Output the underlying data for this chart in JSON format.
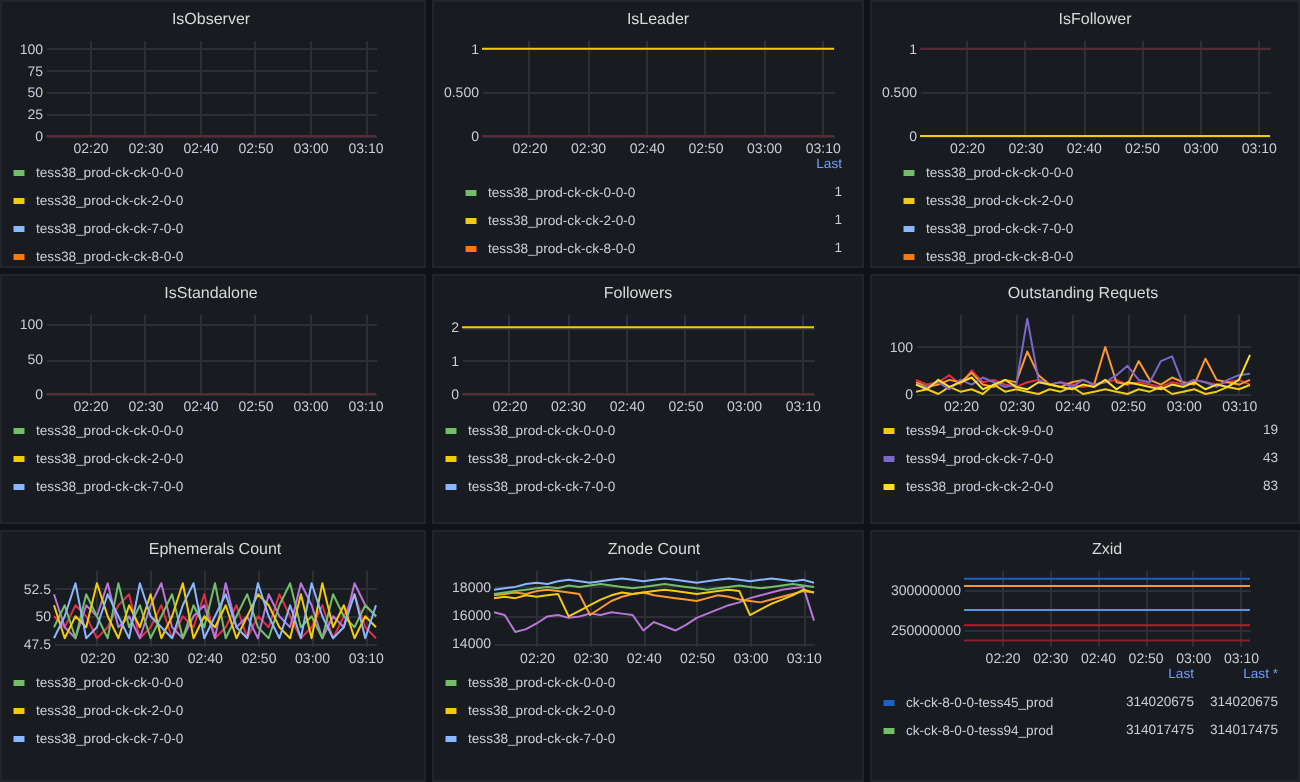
{
  "chart_data": [
    {
      "type": "line",
      "title": "IsObserver",
      "x": [
        2.2,
        3.2
      ],
      "xlim": [
        2.2,
        3.2
      ],
      "xticks": [
        {
          "value": 2.3333,
          "label": "02:20"
        },
        {
          "value": 2.5,
          "label": "02:30"
        },
        {
          "value": 2.6667,
          "label": "02:40"
        },
        {
          "value": 2.8333,
          "label": "02:50"
        },
        {
          "value": 3,
          "label": "03:00"
        },
        {
          "value": 3.1667,
          "label": "03:10"
        }
      ],
      "ylim": [
        0,
        110
      ],
      "yticks": [
        0,
        25,
        50,
        75,
        100
      ],
      "grid": true,
      "legend": "bottom",
      "series": [
        {
          "name": "tess38_prod-ck-ck-0-0-0",
          "color": "#73bf69",
          "values": [
            null,
            null
          ]
        },
        {
          "name": "tess38_prod-ck-ck-2-0-0",
          "color": "#f2cc0c",
          "values": [
            null,
            null
          ]
        },
        {
          "name": "tess38_prod-ck-ck-7-0-0",
          "color": "#8ab8ff",
          "values": [
            null,
            null
          ]
        },
        {
          "name": "tess38_prod-ck-ck-8-0-0",
          "color": "#ff780a",
          "values": [
            null,
            null
          ]
        },
        {
          "color": "#5c2a36",
          "values": [
            0,
            0
          ]
        }
      ]
    },
    {
      "type": "line",
      "title": "IsLeader",
      "x": [
        2.2,
        3.2
      ],
      "xlim": [
        2.2,
        3.2
      ],
      "xticks": [
        {
          "value": 2.3333,
          "label": "02:20"
        },
        {
          "value": 2.5,
          "label": "02:30"
        },
        {
          "value": 2.6667,
          "label": "02:40"
        },
        {
          "value": 2.8333,
          "label": "02:50"
        },
        {
          "value": 3,
          "label": "03:00"
        },
        {
          "value": 3.1667,
          "label": "03:10"
        }
      ],
      "ylim": [
        0,
        1.1
      ],
      "yticks": [
        0,
        {
          "value": 0.5,
          "label": "0.500"
        },
        1
      ],
      "grid": true,
      "legend": "bottom",
      "annotations": [
        "Last",
        "1",
        "1",
        "1"
      ],
      "series": [
        {
          "color": "#5c2a36",
          "values": [
            0,
            0
          ]
        },
        {
          "name": "tess38_prod-ck-ck-0-0-0",
          "color": "#73bf69",
          "values": [
            null,
            null
          ]
        },
        {
          "name": "tess38_prod-ck-ck-2-0-0",
          "color": "#f2cc0c",
          "values": [
            1,
            1
          ]
        },
        {
          "name": "tess38_prod-ck-ck-8-0-0",
          "color": "#ff780a",
          "values": [
            null,
            null
          ]
        }
      ]
    },
    {
      "type": "line",
      "title": "IsFollower",
      "x": [
        2.2,
        3.2
      ],
      "xlim": [
        2.2,
        3.2
      ],
      "xticks": [
        {
          "value": 2.3333,
          "label": "02:20"
        },
        {
          "value": 2.5,
          "label": "02:30"
        },
        {
          "value": 2.6667,
          "label": "02:40"
        },
        {
          "value": 2.8333,
          "label": "02:50"
        },
        {
          "value": 3,
          "label": "03:00"
        },
        {
          "value": 3.1667,
          "label": "03:10"
        }
      ],
      "ylim": [
        0,
        1.1
      ],
      "yticks": [
        0,
        {
          "value": 0.5,
          "label": "0.500"
        },
        1
      ],
      "grid": true,
      "legend": "bottom",
      "series": [
        {
          "color": "#5c2a36",
          "values": [
            1,
            1
          ]
        },
        {
          "name": "tess38_prod-ck-ck-0-0-0",
          "color": "#73bf69",
          "values": [
            null,
            null
          ]
        },
        {
          "name": "tess38_prod-ck-ck-2-0-0",
          "color": "#f2cc0c",
          "values": [
            0,
            0
          ]
        },
        {
          "name": "tess38_prod-ck-ck-7-0-0",
          "color": "#8ab8ff",
          "values": [
            null,
            null
          ]
        },
        {
          "name": "tess38_prod-ck-ck-8-0-0",
          "color": "#ff780a",
          "values": [
            null,
            null
          ]
        }
      ]
    },
    {
      "type": "line",
      "title": "IsStandalone",
      "x": [
        2.2,
        3.2
      ],
      "xlim": [
        2.2,
        3.2
      ],
      "xticks": [
        {
          "value": 2.3333,
          "label": "02:20"
        },
        {
          "value": 2.5,
          "label": "02:30"
        },
        {
          "value": 2.6667,
          "label": "02:40"
        },
        {
          "value": 2.8333,
          "label": "02:50"
        },
        {
          "value": 3,
          "label": "03:00"
        },
        {
          "value": 3.1667,
          "label": "03:10"
        }
      ],
      "ylim": [
        0,
        115
      ],
      "yticks": [
        0,
        50,
        100
      ],
      "grid": true,
      "legend": "bottom",
      "series": [
        {
          "name": "tess38_prod-ck-ck-0-0-0",
          "color": "#73bf69",
          "values": [
            null,
            null
          ]
        },
        {
          "name": "tess38_prod-ck-ck-2-0-0",
          "color": "#f2cc0c",
          "values": [
            null,
            null
          ]
        },
        {
          "name": "tess38_prod-ck-ck-7-0-0",
          "color": "#8ab8ff",
          "values": [
            null,
            null
          ]
        },
        {
          "color": "#5c2a36",
          "values": [
            0,
            0
          ]
        }
      ]
    },
    {
      "type": "line",
      "title": "Followers",
      "x": [
        2.2,
        3.2
      ],
      "xlim": [
        2.2,
        3.2
      ],
      "xticks": [
        {
          "value": 2.3333,
          "label": "02:20"
        },
        {
          "value": 2.5,
          "label": "02:30"
        },
        {
          "value": 2.6667,
          "label": "02:40"
        },
        {
          "value": 2.8333,
          "label": "02:50"
        },
        {
          "value": 3,
          "label": "03:00"
        },
        {
          "value": 3.1667,
          "label": "03:10"
        }
      ],
      "ylim": [
        0,
        2.4
      ],
      "yticks": [
        0,
        1,
        2
      ],
      "grid": true,
      "legend": "bottom",
      "series": [
        {
          "color": "#5c2a36",
          "values": [
            0,
            0
          ]
        },
        {
          "name": "tess38_prod-ck-ck-0-0-0",
          "color": "#73bf69",
          "values": [
            null,
            null
          ]
        },
        {
          "name": "tess38_prod-ck-ck-2-0-0",
          "color": "#f2cc0c",
          "values": [
            2,
            2
          ]
        },
        {
          "name": "tess38_prod-ck-ck-7-0-0",
          "color": "#8ab8ff",
          "values": [
            null,
            null
          ]
        }
      ]
    },
    {
      "type": "line",
      "title": "Outstanding Requets",
      "x": [
        2.2,
        2.2333,
        2.2667,
        2.3,
        2.3333,
        2.3667,
        2.4,
        2.4333,
        2.4667,
        2.5,
        2.5333,
        2.5667,
        2.6,
        2.6333,
        2.6667,
        2.7,
        2.7333,
        2.7667,
        2.8,
        2.8333,
        2.8667,
        2.9,
        2.9333,
        2.9667,
        3,
        3.0333,
        3.0667,
        3.1,
        3.1333,
        3.1667,
        3.2
      ],
      "xlim": [
        2.2,
        3.2
      ],
      "xticks": [
        {
          "value": 2.3333,
          "label": "02:20"
        },
        {
          "value": 2.5,
          "label": "02:30"
        },
        {
          "value": 2.6667,
          "label": "02:40"
        },
        {
          "value": 2.8333,
          "label": "02:50"
        },
        {
          "value": 3,
          "label": "03:00"
        },
        {
          "value": 3.1667,
          "label": "03:10"
        }
      ],
      "ylim": [
        0,
        170
      ],
      "yticks": [
        0,
        100
      ],
      "grid": true,
      "legend": "bottom",
      "annotations": [
        "19",
        "43",
        "83"
      ],
      "series": [
        {
          "color": "#e02f44",
          "values": [
            30,
            20,
            25,
            40,
            20,
            50,
            25,
            30,
            20,
            15,
            25,
            30,
            20,
            25,
            20,
            15,
            20,
            25,
            30,
            20,
            25,
            20,
            15,
            25,
            20,
            30,
            25,
            20,
            25,
            30,
            20
          ]
        },
        {
          "color": "#ff9830",
          "values": [
            25,
            15,
            20,
            30,
            25,
            45,
            20,
            15,
            30,
            25,
            90,
            40,
            20,
            15,
            25,
            30,
            20,
            100,
            25,
            20,
            70,
            30,
            20,
            35,
            25,
            20,
            75,
            30,
            25,
            20,
            30
          ]
        },
        {
          "name": "tess94_prod-ck-ck-9-0-0",
          "color": "#f2cc0c",
          "values": [
            5,
            10,
            0,
            15,
            5,
            10,
            0,
            20,
            5,
            10,
            5,
            0,
            10,
            5,
            15,
            0,
            5,
            10,
            5,
            0,
            10,
            5,
            15,
            0,
            5,
            10,
            0,
            5,
            15,
            10,
            19
          ]
        },
        {
          "name": "tess94_prod-ck-ck-7-0-0",
          "color": "#7b68c8",
          "values": [
            20,
            15,
            25,
            10,
            30,
            20,
            35,
            25,
            15,
            20,
            160,
            30,
            20,
            25,
            15,
            30,
            20,
            25,
            40,
            60,
            30,
            25,
            70,
            80,
            20,
            30,
            25,
            15,
            30,
            40,
            43
          ]
        },
        {
          "name": "tess38_prod-ck-ck-2-0-0",
          "color": "#fade2a",
          "values": [
            20,
            10,
            30,
            15,
            25,
            35,
            10,
            20,
            30,
            15,
            10,
            25,
            20,
            15,
            10,
            20,
            15,
            30,
            10,
            25,
            20,
            15,
            10,
            20,
            15,
            25,
            10,
            20,
            15,
            30,
            83
          ]
        }
      ]
    },
    {
      "type": "line",
      "title": "Ephemerals Count",
      "x": [
        2.2,
        2.2333,
        2.2667,
        2.3,
        2.3333,
        2.3667,
        2.4,
        2.4333,
        2.4667,
        2.5,
        2.5333,
        2.5667,
        2.6,
        2.6333,
        2.6667,
        2.7,
        2.7333,
        2.7667,
        2.8,
        2.8333,
        2.8667,
        2.9,
        2.9333,
        2.9667,
        3,
        3.0333,
        3.0667,
        3.1,
        3.1333,
        3.1667,
        3.2
      ],
      "xlim": [
        2.2,
        3.2
      ],
      "xticks": [
        {
          "value": 2.3333,
          "label": "02:20"
        },
        {
          "value": 2.5,
          "label": "02:30"
        },
        {
          "value": 2.6667,
          "label": "02:40"
        },
        {
          "value": 2.8333,
          "label": "02:50"
        },
        {
          "value": 3,
          "label": "03:00"
        },
        {
          "value": 3.1667,
          "label": "03:10"
        }
      ],
      "ylim": [
        47.3,
        54.2
      ],
      "yticks": [
        47.5,
        50,
        52.5
      ],
      "grid": true,
      "legend": "bottom",
      "series": [
        {
          "color": "#e02f44",
          "values": [
            50,
            49,
            51,
            50,
            48,
            49,
            51,
            52,
            48,
            49,
            51,
            48,
            50,
            49,
            52,
            48,
            49,
            51,
            48,
            50,
            49,
            52,
            50,
            48,
            49,
            51,
            48,
            50,
            52,
            49,
            48
          ]
        },
        {
          "color": "#b877d9",
          "values": [
            52,
            49,
            48,
            51,
            50,
            53,
            49,
            50,
            48,
            51,
            53,
            49,
            48,
            50,
            51,
            48,
            53,
            49,
            50,
            48,
            52,
            50,
            49,
            53,
            51,
            48,
            50,
            49,
            53,
            51,
            50
          ]
        },
        {
          "name": "tess38_prod-ck-ck-0-0-0",
          "color": "#73bf69",
          "values": [
            49,
            51,
            48,
            52,
            50,
            48,
            53,
            49,
            51,
            48,
            50,
            52,
            48,
            51,
            49,
            53,
            48,
            50,
            52,
            49,
            48,
            51,
            53,
            49,
            50,
            48,
            52,
            50,
            49,
            51,
            50
          ]
        },
        {
          "name": "tess38_prod-ck-ck-2-0-0",
          "color": "#f2cc0c",
          "values": [
            51,
            48,
            50,
            49,
            53,
            50,
            48,
            51,
            49,
            52,
            48,
            50,
            53,
            48,
            50,
            49,
            51,
            48,
            50,
            52,
            51,
            49,
            48,
            52,
            48,
            53,
            49,
            51,
            48,
            50,
            49
          ]
        },
        {
          "name": "tess38_prod-ck-ck-7-0-0",
          "color": "#8ab8ff",
          "values": [
            48,
            50,
            53,
            48,
            49,
            52,
            50,
            48,
            53,
            50,
            49,
            48,
            51,
            53,
            48,
            50,
            52,
            49,
            48,
            53,
            50,
            48,
            51,
            48,
            53,
            50,
            48,
            49,
            52,
            48,
            51
          ]
        }
      ]
    },
    {
      "type": "line",
      "title": "Znode Count",
      "x": [
        2.2,
        2.2333,
        2.2667,
        2.3,
        2.3333,
        2.3667,
        2.4,
        2.4333,
        2.4667,
        2.5,
        2.5333,
        2.5667,
        2.6,
        2.6333,
        2.6667,
        2.7,
        2.7333,
        2.7667,
        2.8,
        2.8333,
        2.8667,
        2.9,
        2.9333,
        2.9667,
        3,
        3.0333,
        3.0667,
        3.1,
        3.1333,
        3.1667,
        3.2
      ],
      "xlim": [
        2.2,
        3.2
      ],
      "xticks": [
        {
          "value": 2.3333,
          "label": "02:20"
        },
        {
          "value": 2.5,
          "label": "02:30"
        },
        {
          "value": 2.6667,
          "label": "02:40"
        },
        {
          "value": 2.8333,
          "label": "02:50"
        },
        {
          "value": 3,
          "label": "03:00"
        },
        {
          "value": 3.1667,
          "label": "03:10"
        }
      ],
      "ylim": [
        13800,
        19200
      ],
      "yticks": [
        14000,
        16000,
        18000
      ],
      "grid": true,
      "legend": "bottom",
      "series": [
        {
          "color": "#b877d9",
          "values": [
            16200,
            16000,
            14800,
            15000,
            15400,
            15900,
            16000,
            15800,
            15900,
            16100,
            16000,
            16200,
            16100,
            16000,
            14900,
            15500,
            15200,
            14900,
            15300,
            15800,
            16100,
            16400,
            16700,
            16900,
            17200,
            17400,
            17600,
            17800,
            17900,
            18000,
            15600
          ]
        },
        {
          "color": "#ff9830",
          "values": [
            17400,
            17500,
            17600,
            17500,
            17700,
            17800,
            17700,
            17600,
            17500,
            16000,
            16500,
            17000,
            17300,
            17500,
            17600,
            17400,
            17300,
            17200,
            17100,
            17000,
            17200,
            17400,
            17300,
            17100,
            17000,
            16900,
            17100,
            17300,
            17500,
            17700,
            17600
          ]
        },
        {
          "name": "tess38_prod-ck-ck-0-0-0",
          "color": "#73bf69",
          "values": [
            17500,
            17600,
            17700,
            17800,
            17900,
            18000,
            17900,
            18100,
            18000,
            18100,
            18200,
            18100,
            18000,
            17900,
            18000,
            18100,
            18200,
            18100,
            18000,
            17900,
            17800,
            17900,
            18000,
            18100,
            18000,
            17900,
            18000,
            18100,
            18200,
            18100,
            18000
          ]
        },
        {
          "name": "tess38_prod-ck-ck-2-0-0",
          "color": "#f2cc0c",
          "values": [
            17200,
            17300,
            17200,
            17400,
            17300,
            17400,
            17500,
            15900,
            16300,
            16700,
            17100,
            17400,
            17600,
            17500,
            17600,
            17700,
            17800,
            17700,
            17600,
            17500,
            17600,
            17700,
            17800,
            17700,
            16000,
            16400,
            16800,
            17100,
            17400,
            17800,
            17600
          ]
        },
        {
          "name": "tess38_prod-ck-ck-7-0-0",
          "color": "#8ab8ff",
          "values": [
            17800,
            17900,
            18000,
            18200,
            18300,
            18200,
            18400,
            18500,
            18400,
            18300,
            18400,
            18500,
            18600,
            18500,
            18400,
            18500,
            18600,
            18500,
            18400,
            18300,
            18400,
            18500,
            18600,
            18500,
            18400,
            18500,
            18600,
            18500,
            18400,
            18500,
            18300
          ]
        }
      ]
    },
    {
      "type": "line",
      "title": "Zxid",
      "x": [
        2.2,
        3.2
      ],
      "xlim": [
        2.2,
        3.2
      ],
      "xticks": [
        {
          "value": 2.3333,
          "label": "02:20"
        },
        {
          "value": 2.5,
          "label": "02:30"
        },
        {
          "value": 2.6667,
          "label": "02:40"
        },
        {
          "value": 2.8333,
          "label": "02:50"
        },
        {
          "value": 3,
          "label": "03:00"
        },
        {
          "value": 3.1667,
          "label": "03:10"
        }
      ],
      "ylim": [
        230000000,
        325000000
      ],
      "yticks": [
        250000000,
        300000000
      ],
      "grid": true,
      "legend": "bottom",
      "annotations": [
        "Last",
        "Last *",
        "314020675",
        "314020675",
        "314017475",
        "314017475"
      ],
      "series": [
        {
          "color": "#ff9830",
          "values": [
            305000000,
            305000000
          ]
        },
        {
          "color": "#5794f2",
          "values": [
            275000000,
            275000000
          ]
        },
        {
          "color": "#c4162a",
          "values": [
            256000000,
            256000000
          ]
        },
        {
          "color": "#8f1d2b",
          "values": [
            237000000,
            237000000
          ]
        },
        {
          "name": "ck-ck-8-0-0-tess45_prod",
          "color": "#1f60c4",
          "values": [
            314020675,
            314020675
          ]
        },
        {
          "name": "ck-ck-8-0-0-tess94_prod",
          "color": "#73bf69",
          "values": [
            null,
            null
          ]
        }
      ]
    }
  ]
}
